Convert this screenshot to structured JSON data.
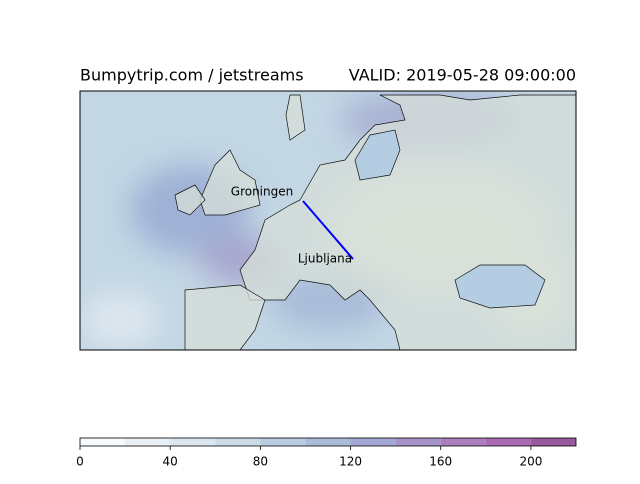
{
  "header": {
    "title": "Bumpytrip.com / jetstreams",
    "valid": "VALID: 2019-05-28 09:00:00"
  },
  "map": {
    "cities": [
      {
        "label": "Groningen"
      },
      {
        "label": "Ljubljana"
      }
    ]
  },
  "colorbar": {
    "levels": [
      0,
      20,
      40,
      60,
      80,
      100,
      120,
      140,
      160,
      180,
      200,
      220
    ],
    "colors": [
      "#f7fafc",
      "#e8eff5",
      "#dbe6ef",
      "#cbdbe8",
      "#b9cde2",
      "#a9bcd9",
      "#a2a8d1",
      "#a593c7",
      "#a97fbd",
      "#a86bb1",
      "#985a9c"
    ],
    "ticks": [
      0,
      40,
      80,
      120,
      160,
      200
    ]
  }
}
